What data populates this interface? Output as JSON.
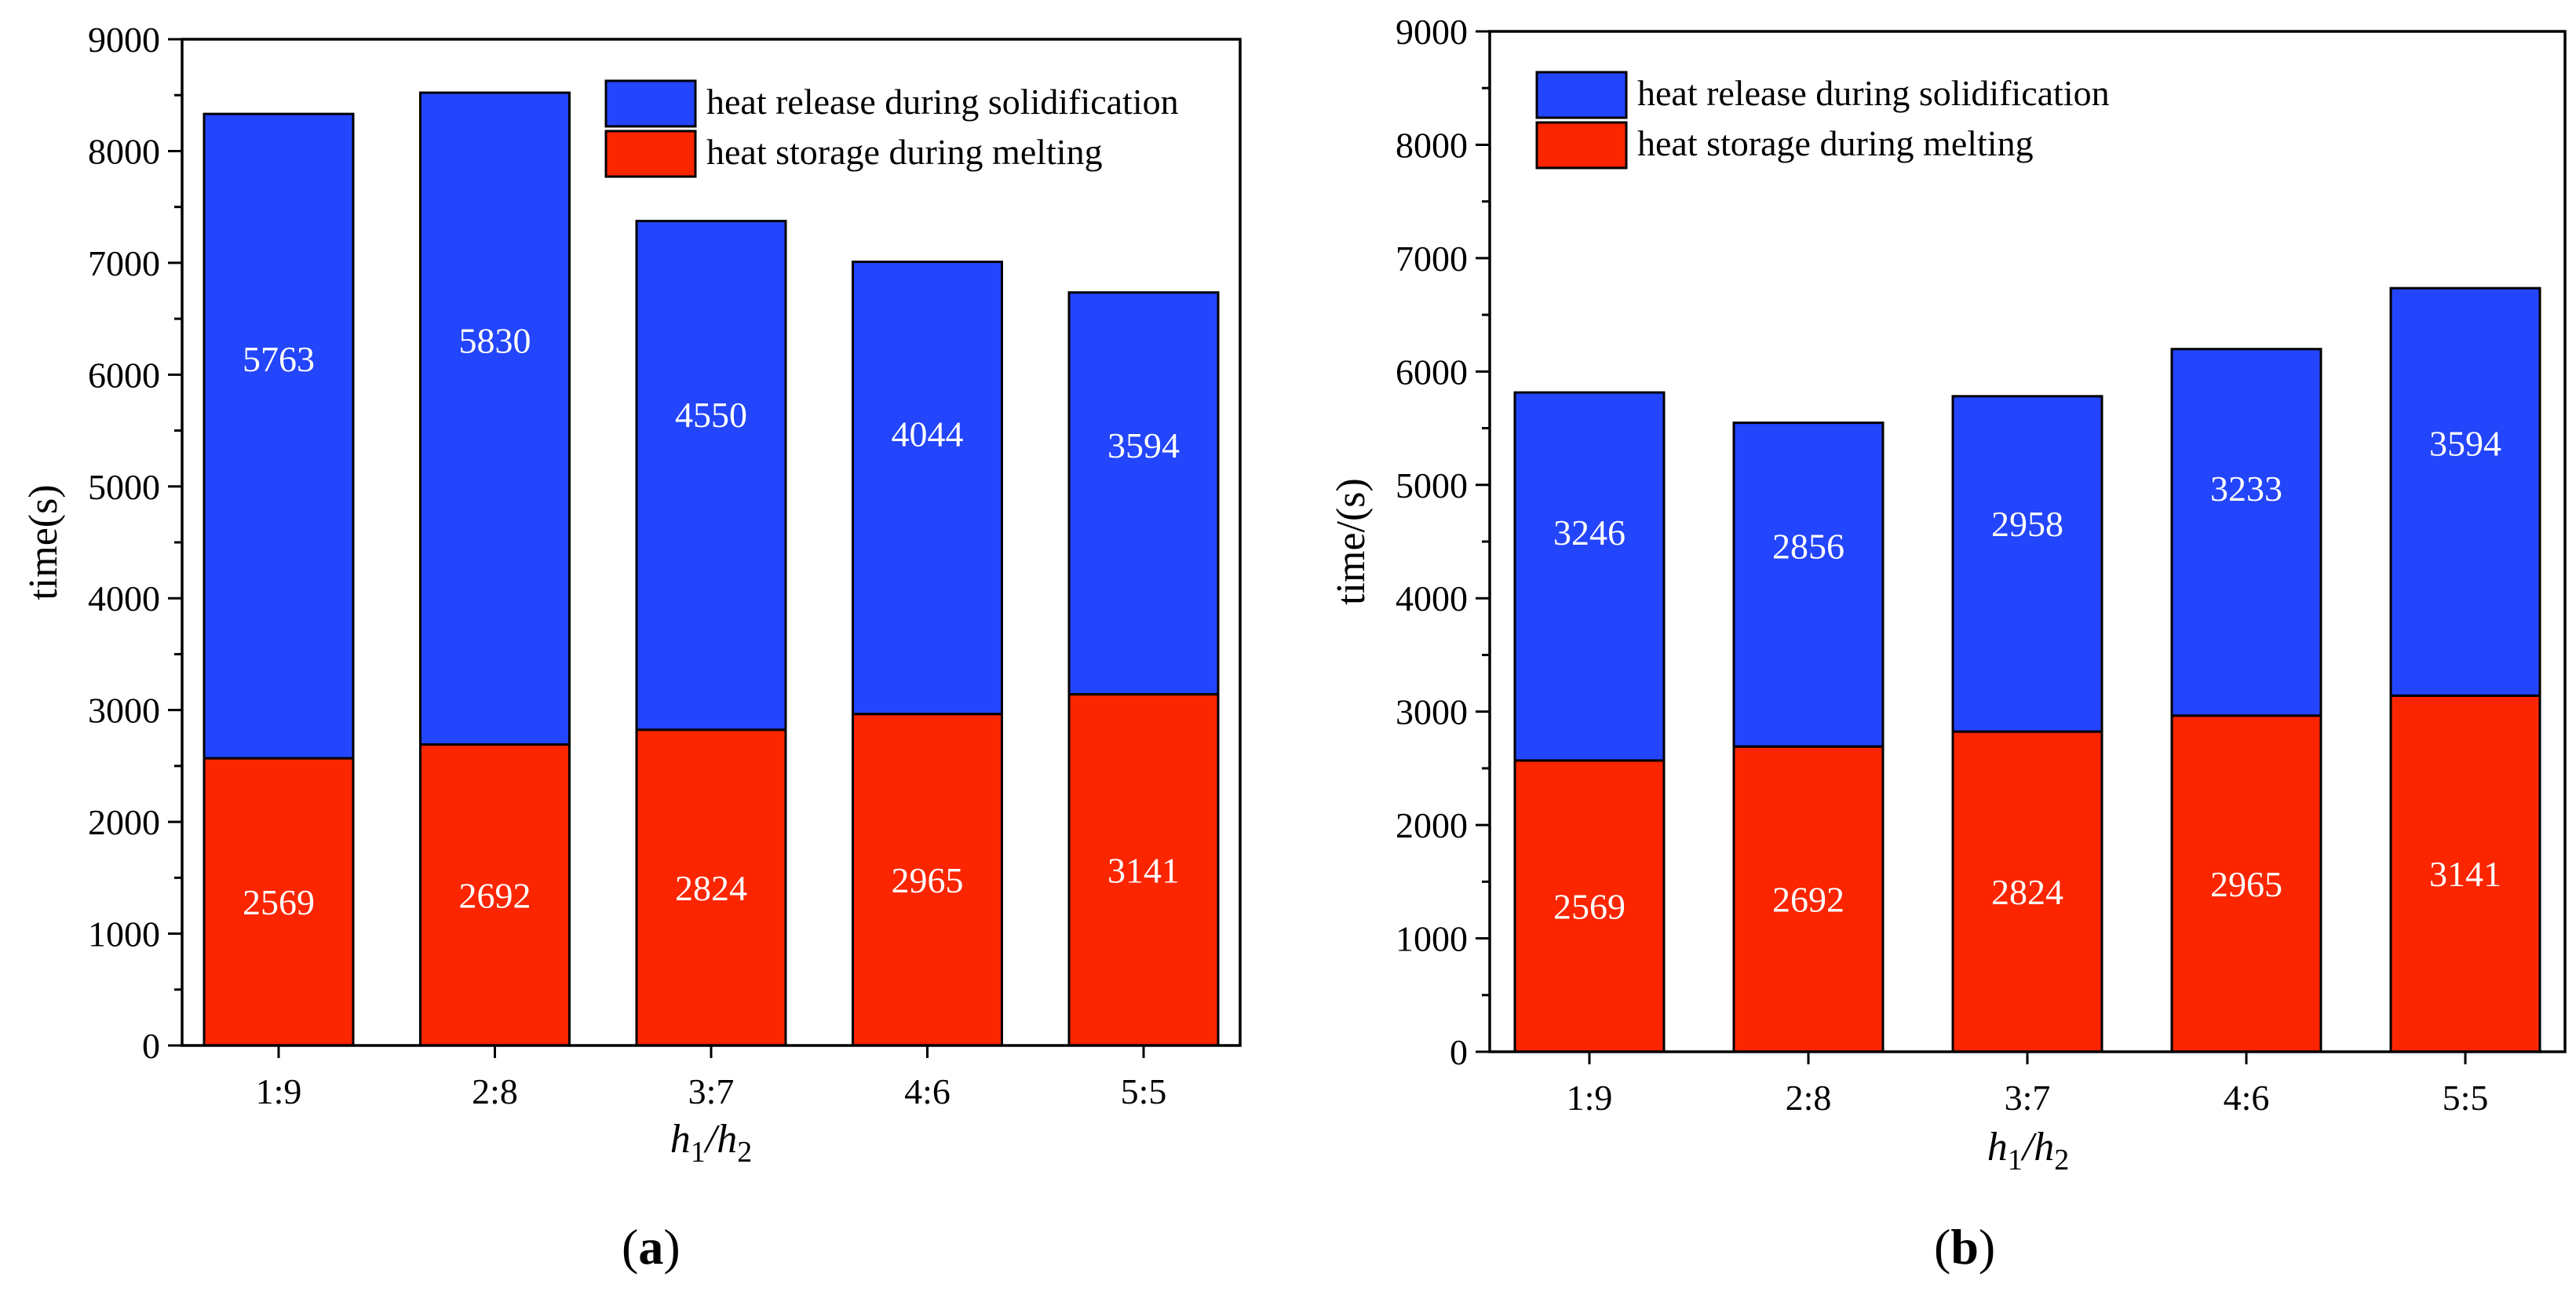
{
  "colors": {
    "solidification": "#2345fb",
    "melting": "#fb2500",
    "axis": "#000000"
  },
  "chart_data": [
    {
      "type": "bar",
      "stacked": true,
      "panel_label": "a",
      "categories": [
        "1:9",
        "2:8",
        "3:7",
        "4:6",
        "5:5"
      ],
      "series": [
        {
          "name": "heat storage during melting",
          "values": [
            2569,
            2692,
            2824,
            2965,
            3141
          ]
        },
        {
          "name": "heat release during solidification",
          "values": [
            5763,
            5830,
            4550,
            4044,
            3594
          ]
        }
      ],
      "ylabel": "time(s)",
      "xlabel": "h1/h2",
      "ylim": [
        0,
        9000
      ],
      "yticks": [
        "0",
        "1000",
        "2000",
        "3000",
        "4000",
        "5000",
        "6000",
        "7000",
        "8000",
        "9000"
      ],
      "legend": {
        "position": "top-right",
        "entries": [
          "heat release during solidification",
          "heat storage during melting"
        ]
      }
    },
    {
      "type": "bar",
      "stacked": true,
      "panel_label": "b",
      "categories": [
        "1:9",
        "2:8",
        "3:7",
        "4:6",
        "5:5"
      ],
      "series": [
        {
          "name": "heat storage during melting",
          "values": [
            2569,
            2692,
            2824,
            2965,
            3141
          ]
        },
        {
          "name": "heat release during solidification",
          "values": [
            3246,
            2856,
            2958,
            3233,
            3594
          ]
        }
      ],
      "ylabel": "time/(s)",
      "xlabel": "h1/h2",
      "ylim": [
        0,
        9000
      ],
      "yticks": [
        "0",
        "1000",
        "2000",
        "3000",
        "4000",
        "5000",
        "6000",
        "7000",
        "8000",
        "9000"
      ],
      "legend": {
        "position": "top-left",
        "entries": [
          "heat release during solidification",
          "heat storage during melting"
        ]
      }
    }
  ]
}
